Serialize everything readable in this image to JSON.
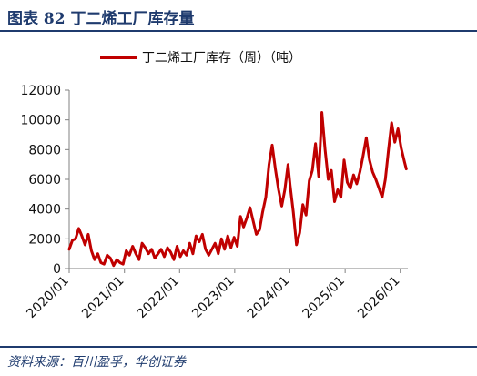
{
  "figure": {
    "title": "图表 82  丁二烯工厂库存量",
    "source": "资料来源：百川盈孚，华创证券"
  },
  "chart_data": {
    "type": "line",
    "title": "",
    "xlabel": "",
    "ylabel": "",
    "ylim": [
      0,
      12000
    ],
    "yticks": [
      0,
      2000,
      4000,
      6000,
      8000,
      10000,
      12000
    ],
    "xticks": [
      "2020/01",
      "2021/01",
      "2022/01",
      "2023/01",
      "2024/01",
      "2025/01",
      "2026/01"
    ],
    "grid": false,
    "legend_position": "top",
    "colors": {
      "series": "#c00000",
      "axis": "#808080"
    },
    "series": [
      {
        "name": "丁二烯工厂库存（周）（吨）",
        "points": [
          [
            "2020-01-01",
            1300
          ],
          [
            "2020-01-22",
            1900
          ],
          [
            "2020-02-12",
            2000
          ],
          [
            "2020-03-04",
            2700
          ],
          [
            "2020-03-25",
            2200
          ],
          [
            "2020-04-15",
            1600
          ],
          [
            "2020-05-06",
            2300
          ],
          [
            "2020-05-27",
            1200
          ],
          [
            "2020-06-17",
            600
          ],
          [
            "2020-07-08",
            1000
          ],
          [
            "2020-07-29",
            400
          ],
          [
            "2020-08-19",
            300
          ],
          [
            "2020-09-09",
            900
          ],
          [
            "2020-09-30",
            700
          ],
          [
            "2020-10-21",
            200
          ],
          [
            "2020-11-11",
            600
          ],
          [
            "2020-12-02",
            400
          ],
          [
            "2020-12-23",
            300
          ],
          [
            "2021-01-13",
            1200
          ],
          [
            "2021-02-03",
            900
          ],
          [
            "2021-02-24",
            1500
          ],
          [
            "2021-03-17",
            1000
          ],
          [
            "2021-04-07",
            600
          ],
          [
            "2021-04-28",
            1700
          ],
          [
            "2021-05-19",
            1400
          ],
          [
            "2021-06-09",
            1000
          ],
          [
            "2021-06-30",
            1300
          ],
          [
            "2021-07-21",
            700
          ],
          [
            "2021-08-11",
            1000
          ],
          [
            "2021-09-01",
            1300
          ],
          [
            "2021-09-22",
            800
          ],
          [
            "2021-10-13",
            1400
          ],
          [
            "2021-11-03",
            1100
          ],
          [
            "2021-11-24",
            600
          ],
          [
            "2021-12-15",
            1500
          ],
          [
            "2022-01-05",
            800
          ],
          [
            "2022-01-26",
            1200
          ],
          [
            "2022-02-16",
            900
          ],
          [
            "2022-03-09",
            1700
          ],
          [
            "2022-03-30",
            1000
          ],
          [
            "2022-04-20",
            2200
          ],
          [
            "2022-05-11",
            1800
          ],
          [
            "2022-06-01",
            2300
          ],
          [
            "2022-06-22",
            1300
          ],
          [
            "2022-07-13",
            900
          ],
          [
            "2022-08-03",
            1300
          ],
          [
            "2022-08-24",
            1700
          ],
          [
            "2022-09-14",
            1000
          ],
          [
            "2022-10-05",
            2000
          ],
          [
            "2022-10-26",
            1300
          ],
          [
            "2022-11-16",
            2200
          ],
          [
            "2022-12-07",
            1400
          ],
          [
            "2022-12-28",
            2100
          ],
          [
            "2023-01-18",
            1500
          ],
          [
            "2023-02-08",
            3500
          ],
          [
            "2023-03-01",
            2800
          ],
          [
            "2023-03-22",
            3400
          ],
          [
            "2023-04-12",
            4100
          ],
          [
            "2023-05-03",
            3200
          ],
          [
            "2023-05-24",
            2300
          ],
          [
            "2023-06-14",
            2600
          ],
          [
            "2023-07-05",
            3800
          ],
          [
            "2023-07-26",
            4800
          ],
          [
            "2023-08-16",
            7000
          ],
          [
            "2023-09-06",
            8300
          ],
          [
            "2023-09-27",
            6700
          ],
          [
            "2023-10-18",
            5300
          ],
          [
            "2023-11-08",
            4200
          ],
          [
            "2023-11-29",
            5300
          ],
          [
            "2023-12-20",
            7000
          ],
          [
            "2024-01-03",
            5600
          ],
          [
            "2024-01-24",
            3800
          ],
          [
            "2024-02-14",
            1600
          ],
          [
            "2024-03-06",
            2400
          ],
          [
            "2024-03-27",
            4300
          ],
          [
            "2024-04-17",
            3600
          ],
          [
            "2024-05-08",
            5900
          ],
          [
            "2024-05-29",
            6600
          ],
          [
            "2024-06-19",
            8400
          ],
          [
            "2024-07-10",
            6200
          ],
          [
            "2024-07-31",
            10500
          ],
          [
            "2024-08-21",
            8000
          ],
          [
            "2024-09-11",
            6000
          ],
          [
            "2024-10-02",
            6600
          ],
          [
            "2024-10-23",
            4500
          ],
          [
            "2024-11-13",
            5300
          ],
          [
            "2024-12-04",
            4800
          ],
          [
            "2024-12-25",
            7300
          ],
          [
            "2025-01-15",
            5800
          ],
          [
            "2025-02-05",
            5400
          ],
          [
            "2025-02-26",
            6300
          ],
          [
            "2025-03-19",
            5700
          ],
          [
            "2025-04-09",
            6500
          ],
          [
            "2025-04-30",
            7600
          ],
          [
            "2025-05-21",
            8800
          ],
          [
            "2025-06-11",
            7300
          ],
          [
            "2025-07-02",
            6500
          ],
          [
            "2025-07-23",
            6000
          ],
          [
            "2025-08-13",
            5400
          ],
          [
            "2025-09-03",
            4800
          ],
          [
            "2025-09-24",
            6000
          ],
          [
            "2025-10-15",
            8000
          ],
          [
            "2025-11-05",
            9800
          ],
          [
            "2025-11-26",
            8500
          ],
          [
            "2025-12-17",
            9400
          ],
          [
            "2026-01-07",
            8100
          ],
          [
            "2026-01-28",
            7200
          ],
          [
            "2026-02-10",
            6700
          ]
        ]
      }
    ]
  }
}
